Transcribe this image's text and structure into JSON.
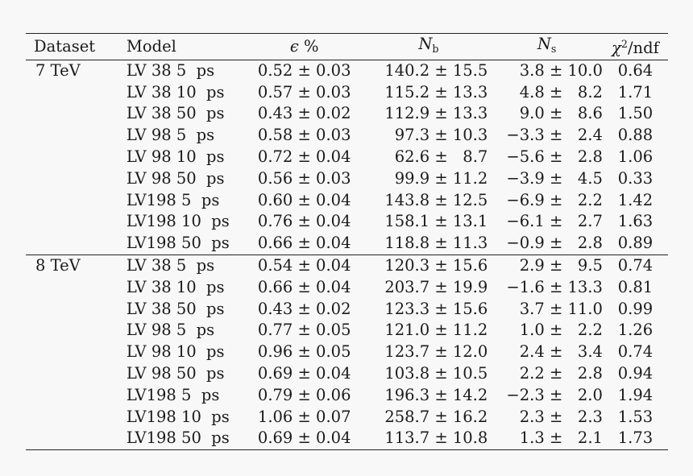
{
  "headers": {
    "dataset": "Dataset",
    "model": "Model",
    "eps_sym": "ϵ",
    "eps_unit": "%",
    "nb_sym": "N",
    "nb_sub": "b",
    "ns_sym": "N",
    "ns_sub": "s",
    "chi_sym": "χ",
    "chi_sup": "2",
    "chi_rest": "/ndf"
  },
  "groups": [
    {
      "dataset": "7 TeV",
      "rows": [
        {
          "model": "LV 38 5  ps",
          "eps": "0.52 ± 0.03",
          "nb": "140.2 ± 15.5",
          "ns": "3.8 ± 10.0",
          "chi": "0.64"
        },
        {
          "model": "LV 38 10  ps",
          "eps": "0.57 ± 0.03",
          "nb": "115.2 ± 13.3",
          "ns": "4.8 ±   8.2",
          "chi": "1.71"
        },
        {
          "model": "LV 38 50  ps",
          "eps": "0.43 ± 0.02",
          "nb": "112.9 ± 13.3",
          "ns": "9.0 ±   8.6",
          "chi": "1.50"
        },
        {
          "model": "LV 98 5  ps",
          "eps": "0.58 ± 0.03",
          "nb": "97.3 ± 10.3",
          "ns": "−3.3 ±   2.4",
          "chi": "0.88"
        },
        {
          "model": "LV 98 10  ps",
          "eps": "0.72 ± 0.04",
          "nb": "62.6 ±   8.7",
          "ns": "−5.6 ±   2.8",
          "chi": "1.06"
        },
        {
          "model": "LV 98 50  ps",
          "eps": "0.56 ± 0.03",
          "nb": "99.9 ± 11.2",
          "ns": "−3.9 ±   4.5",
          "chi": "0.33"
        },
        {
          "model": "LV198 5  ps",
          "eps": "0.60 ± 0.04",
          "nb": "143.8 ± 12.5",
          "ns": "−6.9 ±   2.2",
          "chi": "1.42"
        },
        {
          "model": "LV198 10  ps",
          "eps": "0.76 ± 0.04",
          "nb": "158.1 ± 13.1",
          "ns": "−6.1 ±   2.7",
          "chi": "1.63"
        },
        {
          "model": "LV198 50  ps",
          "eps": "0.66 ± 0.04",
          "nb": "118.8 ± 11.3",
          "ns": "−0.9 ±   2.8",
          "chi": "0.89"
        }
      ]
    },
    {
      "dataset": "8 TeV",
      "rows": [
        {
          "model": "LV 38 5  ps",
          "eps": "0.54 ± 0.04",
          "nb": "120.3 ± 15.6",
          "ns": "2.9 ±   9.5",
          "chi": "0.74"
        },
        {
          "model": "LV 38 10  ps",
          "eps": "0.66 ± 0.04",
          "nb": "203.7 ± 19.9",
          "ns": "−1.6 ± 13.3",
          "chi": "0.81"
        },
        {
          "model": "LV 38 50  ps",
          "eps": "0.43 ± 0.02",
          "nb": "123.3 ± 15.6",
          "ns": "3.7 ± 11.0",
          "chi": "0.99"
        },
        {
          "model": "LV 98 5  ps",
          "eps": "0.77 ± 0.05",
          "nb": "121.0 ± 11.2",
          "ns": "1.0 ±   2.2",
          "chi": "1.26"
        },
        {
          "model": "LV 98 10  ps",
          "eps": "0.96 ± 0.05",
          "nb": "123.7 ± 12.0",
          "ns": "2.4 ±   3.4",
          "chi": "0.74"
        },
        {
          "model": "LV 98 50  ps",
          "eps": "0.69 ± 0.04",
          "nb": "103.8 ± 10.5",
          "ns": "2.2 ±   2.8",
          "chi": "0.94"
        },
        {
          "model": "LV198 5  ps",
          "eps": "0.79 ± 0.06",
          "nb": "196.3 ± 14.2",
          "ns": "−2.3 ±   2.0",
          "chi": "1.94"
        },
        {
          "model": "LV198 10  ps",
          "eps": "1.06 ± 0.07",
          "nb": "258.7 ± 16.2",
          "ns": "2.3 ±   2.3",
          "chi": "1.53"
        },
        {
          "model": "LV198 50  ps",
          "eps": "0.69 ± 0.04",
          "nb": "113.7 ± 10.8",
          "ns": "1.3 ±   2.1",
          "chi": "1.73"
        }
      ]
    }
  ]
}
